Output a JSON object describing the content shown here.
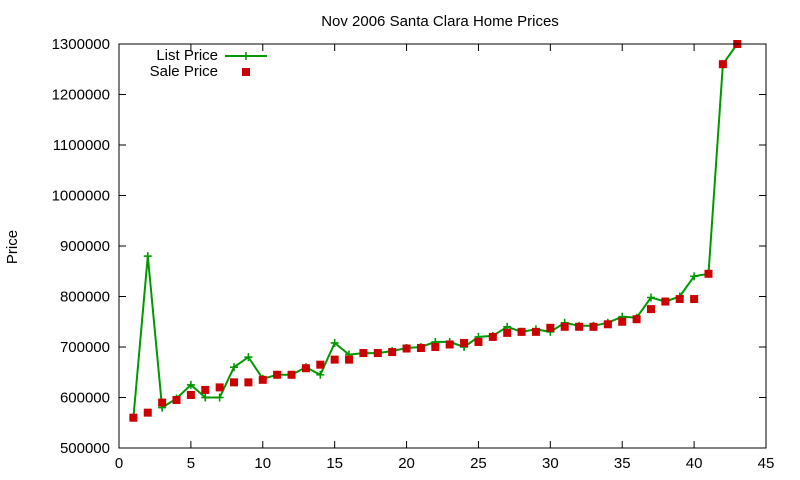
{
  "chart_data": {
    "type": "line",
    "title": "Nov 2006 Santa Clara Home Prices",
    "xlabel": "",
    "ylabel": "Price",
    "xlim": [
      0,
      45
    ],
    "ylim": [
      500000,
      1300000
    ],
    "xticks": [
      0,
      5,
      10,
      15,
      20,
      25,
      30,
      35,
      40,
      45
    ],
    "yticks": [
      500000,
      600000,
      700000,
      800000,
      900000,
      1000000,
      1100000,
      1200000,
      1300000
    ],
    "grid": false,
    "legend_position": "top-left",
    "x": [
      1,
      2,
      3,
      4,
      5,
      6,
      7,
      8,
      9,
      10,
      11,
      12,
      13,
      14,
      15,
      16,
      17,
      18,
      19,
      20,
      21,
      22,
      23,
      24,
      25,
      26,
      27,
      28,
      29,
      30,
      31,
      32,
      33,
      34,
      35,
      36,
      37,
      38,
      39,
      40,
      41,
      42,
      43
    ],
    "series": [
      {
        "name": "List Price",
        "style": "line-plus",
        "color": "#009900",
        "values": [
          560000,
          880000,
          580000,
          598000,
          625000,
          600000,
          600000,
          660000,
          680000,
          637000,
          645000,
          645000,
          660000,
          645000,
          708000,
          685000,
          688000,
          688000,
          692000,
          698000,
          700000,
          710000,
          710000,
          700000,
          720000,
          722000,
          740000,
          730000,
          735000,
          730000,
          748000,
          742000,
          742000,
          748000,
          760000,
          758000,
          798000,
          790000,
          800000,
          840000,
          845000,
          1260000,
          1300000
        ]
      },
      {
        "name": "Sale Price",
        "style": "square-marker",
        "color": "#cc0000",
        "values": [
          560000,
          570000,
          590000,
          595000,
          605000,
          615000,
          620000,
          630000,
          630000,
          635000,
          645000,
          645000,
          658000,
          665000,
          675000,
          675000,
          688000,
          688000,
          690000,
          697000,
          698000,
          700000,
          705000,
          708000,
          710000,
          720000,
          728000,
          730000,
          730000,
          738000,
          740000,
          740000,
          740000,
          745000,
          750000,
          755000,
          775000,
          790000,
          795000,
          795000,
          845000,
          1260000,
          1300000
        ]
      }
    ]
  }
}
